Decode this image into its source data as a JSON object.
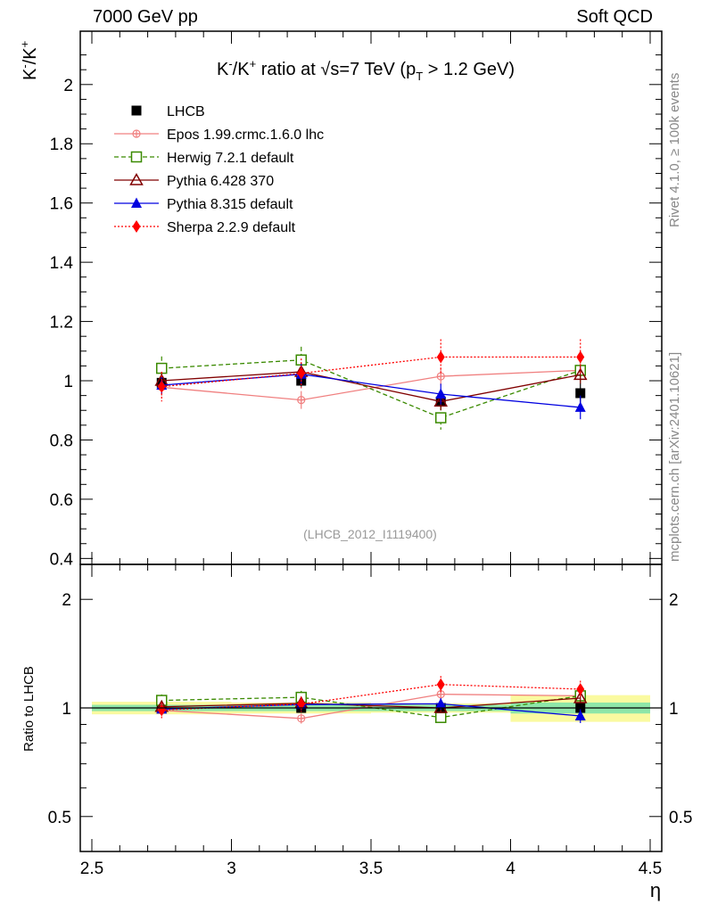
{
  "header": {
    "left": "7000 GeV pp",
    "right": "Soft QCD"
  },
  "side_labels": {
    "rivet": "Rivet 4.1.0, ≥ 100k events",
    "mcplots": "mcplots.cern.ch [arXiv:2401.10621]"
  },
  "chart_data": {
    "type": "scatter",
    "title": "K⁻/K⁺ ratio at √s=7 TeV (p_T > 1.2 GeV)",
    "title_parts": {
      "a": "K",
      "b": "/K",
      "c": " ratio at ",
      "d": "s=7 TeV (p",
      "e": "T",
      "f": " > 1.2 GeV)"
    },
    "analysis_tag": "(LHCB_2012_I1119400)",
    "xlabel": "η",
    "ylabel": "K⁻/K⁺",
    "ratio_ylabel": "Ratio to LHCB",
    "xlim": [
      2.5,
      4.5
    ],
    "ylim": [
      0.38,
      2.18
    ],
    "ratio_ylim": [
      0.4,
      2.5
    ],
    "x_ticks": [
      "2.5",
      "3",
      "3.5",
      "4",
      "4.5"
    ],
    "y_ticks": [
      "0.4",
      "0.6",
      "0.8",
      "1",
      "1.2",
      "1.4",
      "1.6",
      "1.8",
      "2"
    ],
    "ratio_y_ticks": [
      "0.5",
      "1",
      "2"
    ],
    "x": [
      2.75,
      3.25,
      3.75,
      4.25
    ],
    "x_bins": [
      [
        2.5,
        3.0
      ],
      [
        3.0,
        3.5
      ],
      [
        3.5,
        4.0
      ],
      [
        4.0,
        4.5
      ]
    ],
    "series": [
      {
        "name": "LHCB",
        "legend": "LHCB",
        "values": [
          0.993,
          1.0,
          0.93,
          0.958
        ],
        "errors": [
          0.02,
          0.02,
          0.02,
          0.035
        ],
        "color": "#000000",
        "marker": "square-filled",
        "line": "none"
      },
      {
        "name": "Epos",
        "legend": "Epos 1.99.crmc.1.6.0 lhc",
        "values": [
          0.978,
          0.935,
          1.015,
          1.035
        ],
        "errors": [
          0.03,
          0.03,
          0.03,
          0.03
        ],
        "color": "#f08080",
        "marker": "cross-circle",
        "line": "solid"
      },
      {
        "name": "Herwig",
        "legend": "Herwig 7.2.1 default",
        "values": [
          1.042,
          1.07,
          0.875,
          1.035
        ],
        "errors": [
          0.04,
          0.045,
          0.04,
          0.04
        ],
        "color": "#3a8a00",
        "marker": "square-open",
        "line": "dashed"
      },
      {
        "name": "Pythia6",
        "legend": "Pythia 6.428 370",
        "values": [
          1.0,
          1.03,
          0.93,
          1.02
        ],
        "errors": [
          0.03,
          0.03,
          0.03,
          0.03
        ],
        "color": "#800000",
        "marker": "triangle-open",
        "line": "solid"
      },
      {
        "name": "Pythia8",
        "legend": "Pythia 8.315 default",
        "values": [
          0.985,
          1.022,
          0.955,
          0.91
        ],
        "errors": [
          0.03,
          0.035,
          0.035,
          0.04
        ],
        "color": "#0000e0",
        "marker": "triangle-filled",
        "line": "solid"
      },
      {
        "name": "Sherpa",
        "legend": "Sherpa 2.2.9 default",
        "values": [
          0.98,
          1.025,
          1.08,
          1.08
        ],
        "errors": [
          0.05,
          0.05,
          0.06,
          0.06
        ],
        "color": "#ff0000",
        "marker": "diamond-filled",
        "line": "dotted"
      }
    ],
    "ratio_bands": {
      "stat_rel": [
        0.02,
        0.02,
        0.02,
        0.035
      ],
      "total_rel": [
        0.04,
        0.035,
        0.03,
        0.085
      ],
      "stat_color": "#8ee6a8",
      "total_color": "#fafaa0"
    }
  }
}
